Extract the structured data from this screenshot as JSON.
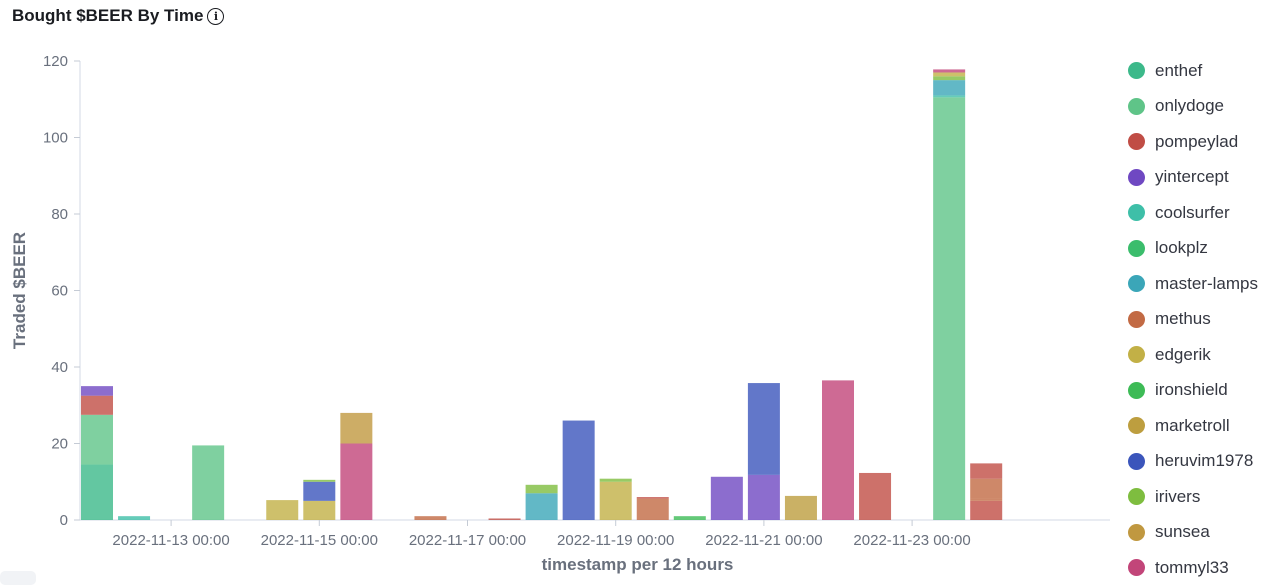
{
  "title": "Bought $BEER By Time",
  "title_icon": "info-icon",
  "chart_data": {
    "type": "bar",
    "stacked": true,
    "xlabel": "timestamp per 12 hours",
    "ylabel": "Traded $BEER",
    "ylim": [
      0,
      120
    ],
    "yticks": [
      0,
      20,
      40,
      60,
      80,
      100,
      120
    ],
    "xticks": [
      "2022-11-13 00:00",
      "2022-11-15 00:00",
      "2022-11-17 00:00",
      "2022-11-19 00:00",
      "2022-11-21 00:00",
      "2022-11-23 00:00"
    ],
    "legend_position": "right",
    "series": [
      {
        "name": "enthef",
        "color": "#3cb98a"
      },
      {
        "name": "onlydoge",
        "color": "#5fc488"
      },
      {
        "name": "pompeylad",
        "color": "#c04d45"
      },
      {
        "name": "yintercept",
        "color": "#6f48c2"
      },
      {
        "name": "coolsurfer",
        "color": "#3ebfa8"
      },
      {
        "name": "lookplz",
        "color": "#3bbd6c"
      },
      {
        "name": "master-lamps",
        "color": "#3ba6b8"
      },
      {
        "name": "methus",
        "color": "#c26a44"
      },
      {
        "name": "edgerik",
        "color": "#c2b046"
      },
      {
        "name": "ironshield",
        "color": "#3dbb56"
      },
      {
        "name": "marketroll",
        "color": "#bd9e3f"
      },
      {
        "name": "heruvim1978",
        "color": "#3b55bb"
      },
      {
        "name": "irivers",
        "color": "#7ebd3f"
      },
      {
        "name": "sunsea",
        "color": "#c09840"
      },
      {
        "name": "tommyl33",
        "color": "#c24579"
      }
    ],
    "bars": [
      {
        "x": "2022-11-12 00:00",
        "segments": [
          {
            "series": "enthef",
            "value": 14.5
          },
          {
            "series": "onlydoge",
            "value": 13
          },
          {
            "series": "pompeylad",
            "value": 5
          },
          {
            "series": "yintercept",
            "value": 2.5
          }
        ]
      },
      {
        "x": "2022-11-12 12:00",
        "segments": [
          {
            "series": "coolsurfer",
            "value": 1
          }
        ]
      },
      {
        "x": "2022-11-13 12:00",
        "segments": [
          {
            "series": "onlydoge",
            "value": 19.5
          }
        ]
      },
      {
        "x": "2022-11-14 12:00",
        "segments": [
          {
            "series": "edgerik",
            "value": 5.2
          }
        ]
      },
      {
        "x": "2022-11-15 00:00",
        "segments": [
          {
            "series": "edgerik",
            "value": 5
          },
          {
            "series": "heruvim1978",
            "value": 5
          },
          {
            "series": "irivers",
            "value": 0.5
          }
        ]
      },
      {
        "x": "2022-11-15 12:00",
        "segments": [
          {
            "series": "tommyl33",
            "value": 20
          },
          {
            "series": "sunsea",
            "value": 8
          }
        ]
      },
      {
        "x": "2022-11-16 12:00",
        "segments": [
          {
            "series": "methus",
            "value": 1
          }
        ]
      },
      {
        "x": "2022-11-17 12:00",
        "segments": [
          {
            "series": "pompeylad",
            "value": 0.4
          }
        ]
      },
      {
        "x": "2022-11-18 00:00",
        "segments": [
          {
            "series": "master-lamps",
            "value": 7
          },
          {
            "series": "irivers",
            "value": 2.2
          }
        ]
      },
      {
        "x": "2022-11-18 12:00",
        "segments": [
          {
            "series": "heruvim1978",
            "value": 26
          }
        ]
      },
      {
        "x": "2022-11-19 00:00",
        "segments": [
          {
            "series": "edgerik",
            "value": 10
          },
          {
            "series": "irivers",
            "value": 0.8
          }
        ]
      },
      {
        "x": "2022-11-19 12:00",
        "segments": [
          {
            "series": "methus",
            "value": 5.6
          },
          {
            "series": "pompeylad",
            "value": 0.4
          }
        ]
      },
      {
        "x": "2022-11-20 00:00",
        "segments": [
          {
            "series": "ironshield",
            "value": 1
          }
        ]
      },
      {
        "x": "2022-11-20 12:00",
        "segments": [
          {
            "series": "yintercept",
            "value": 11.3
          }
        ]
      },
      {
        "x": "2022-11-21 00:00",
        "segments": [
          {
            "series": "yintercept",
            "value": 11.8
          },
          {
            "series": "heruvim1978",
            "value": 24
          }
        ]
      },
      {
        "x": "2022-11-21 12:00",
        "segments": [
          {
            "series": "marketroll",
            "value": 6.3
          }
        ]
      },
      {
        "x": "2022-11-22 00:00",
        "segments": [
          {
            "series": "tommyl33",
            "value": 36.5
          }
        ]
      },
      {
        "x": "2022-11-22 12:00",
        "segments": [
          {
            "series": "pompeylad",
            "value": 12.3
          }
        ]
      },
      {
        "x": "2022-11-23 12:00",
        "segments": [
          {
            "series": "onlydoge",
            "value": 110.5
          },
          {
            "series": "coolsurfer",
            "value": 0.5
          },
          {
            "series": "master-lamps",
            "value": 4
          },
          {
            "series": "irivers",
            "value": 1
          },
          {
            "series": "edgerik",
            "value": 1
          },
          {
            "series": "tommyl33",
            "value": 0.8
          }
        ]
      },
      {
        "x": "2022-11-24 00:00",
        "segments": [
          {
            "series": "pompeylad",
            "value": 5
          },
          {
            "series": "methus",
            "value": 0.5
          },
          {
            "series": "methus",
            "value": 5.3
          },
          {
            "series": "pompeylad",
            "value": 4
          }
        ]
      }
    ]
  }
}
